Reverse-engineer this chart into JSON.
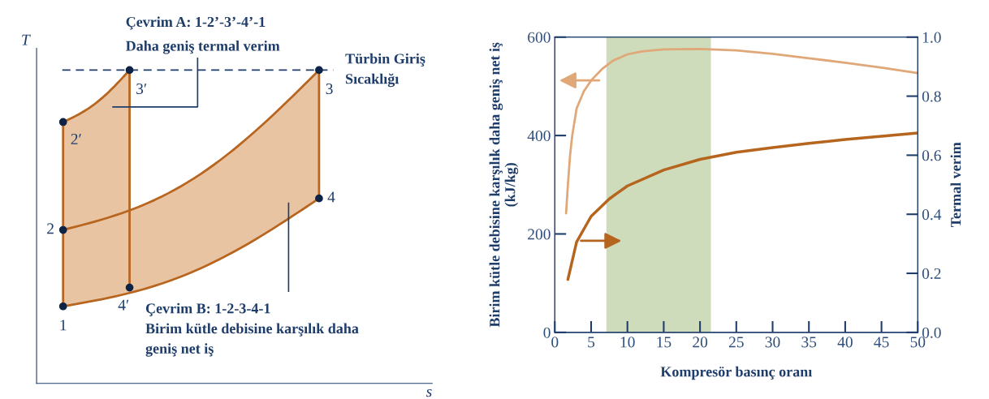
{
  "chart_data": [
    {
      "type": "other",
      "xlabel": "s",
      "ylabel": "T",
      "annotations": [
        "Çevrim A: 1-2’-3’-4’-1",
        "Daha geniş termal verim",
        "Türbin Giriş",
        "Sıcaklığı",
        "Çevrim B: 1-2-3-4-1",
        "Birim kütle debisine karşılık daha",
        "geniş net iş",
        "1",
        "2",
        "2′",
        "3′",
        "3",
        "4",
        "4′"
      ]
    },
    {
      "type": "line",
      "xlabel": "Kompresör basınç oranı",
      "ylabel": "Birim kütle debisine karşılık daha geniş net iş\n(kJ/kg)",
      "y2label": "Termal verim",
      "xlim": [
        0,
        50
      ],
      "xticks": [
        0,
        5,
        10,
        15,
        20,
        25,
        30,
        35,
        40,
        45,
        50
      ],
      "ylim": [
        0,
        600
      ],
      "yticks": [
        0,
        200,
        400,
        600
      ],
      "y2lim": [
        0,
        1
      ],
      "y2ticks": [
        {
          "value": 0,
          "label": "0.0"
        },
        0.2,
        0.4,
        0.6,
        0.8,
        {
          "value": 1,
          "label": "1.0"
        }
      ],
      "grid": false,
      "bands": [
        {
          "axis": "x",
          "from": 7.1,
          "to": 21.5,
          "color": "#c5d6b0"
        }
      ],
      "series": [
        {
          "color": "#e0a878",
          "x": [
            1.55,
            1.8,
            2.1,
            2.4,
            3,
            4,
            5,
            6.5,
            8,
            10,
            12,
            15,
            20,
            25,
            30,
            35,
            40,
            45,
            50
          ],
          "values": [
            242,
            300,
            360,
            400,
            455,
            490,
            512,
            535,
            552,
            565,
            571,
            575,
            576,
            573,
            566,
            557,
            548,
            538,
            527
          ]
        },
        {
          "color": "#b5651d",
          "axis": "y2",
          "x": [
            1.8,
            3,
            5,
            7.5,
            10,
            15,
            20,
            25,
            30,
            35,
            40,
            45,
            50
          ],
          "values": [
            0.179,
            0.306,
            0.393,
            0.452,
            0.496,
            0.55,
            0.586,
            0.61,
            0.626,
            0.64,
            0.653,
            0.664,
            0.675
          ]
        }
      ]
    }
  ]
}
